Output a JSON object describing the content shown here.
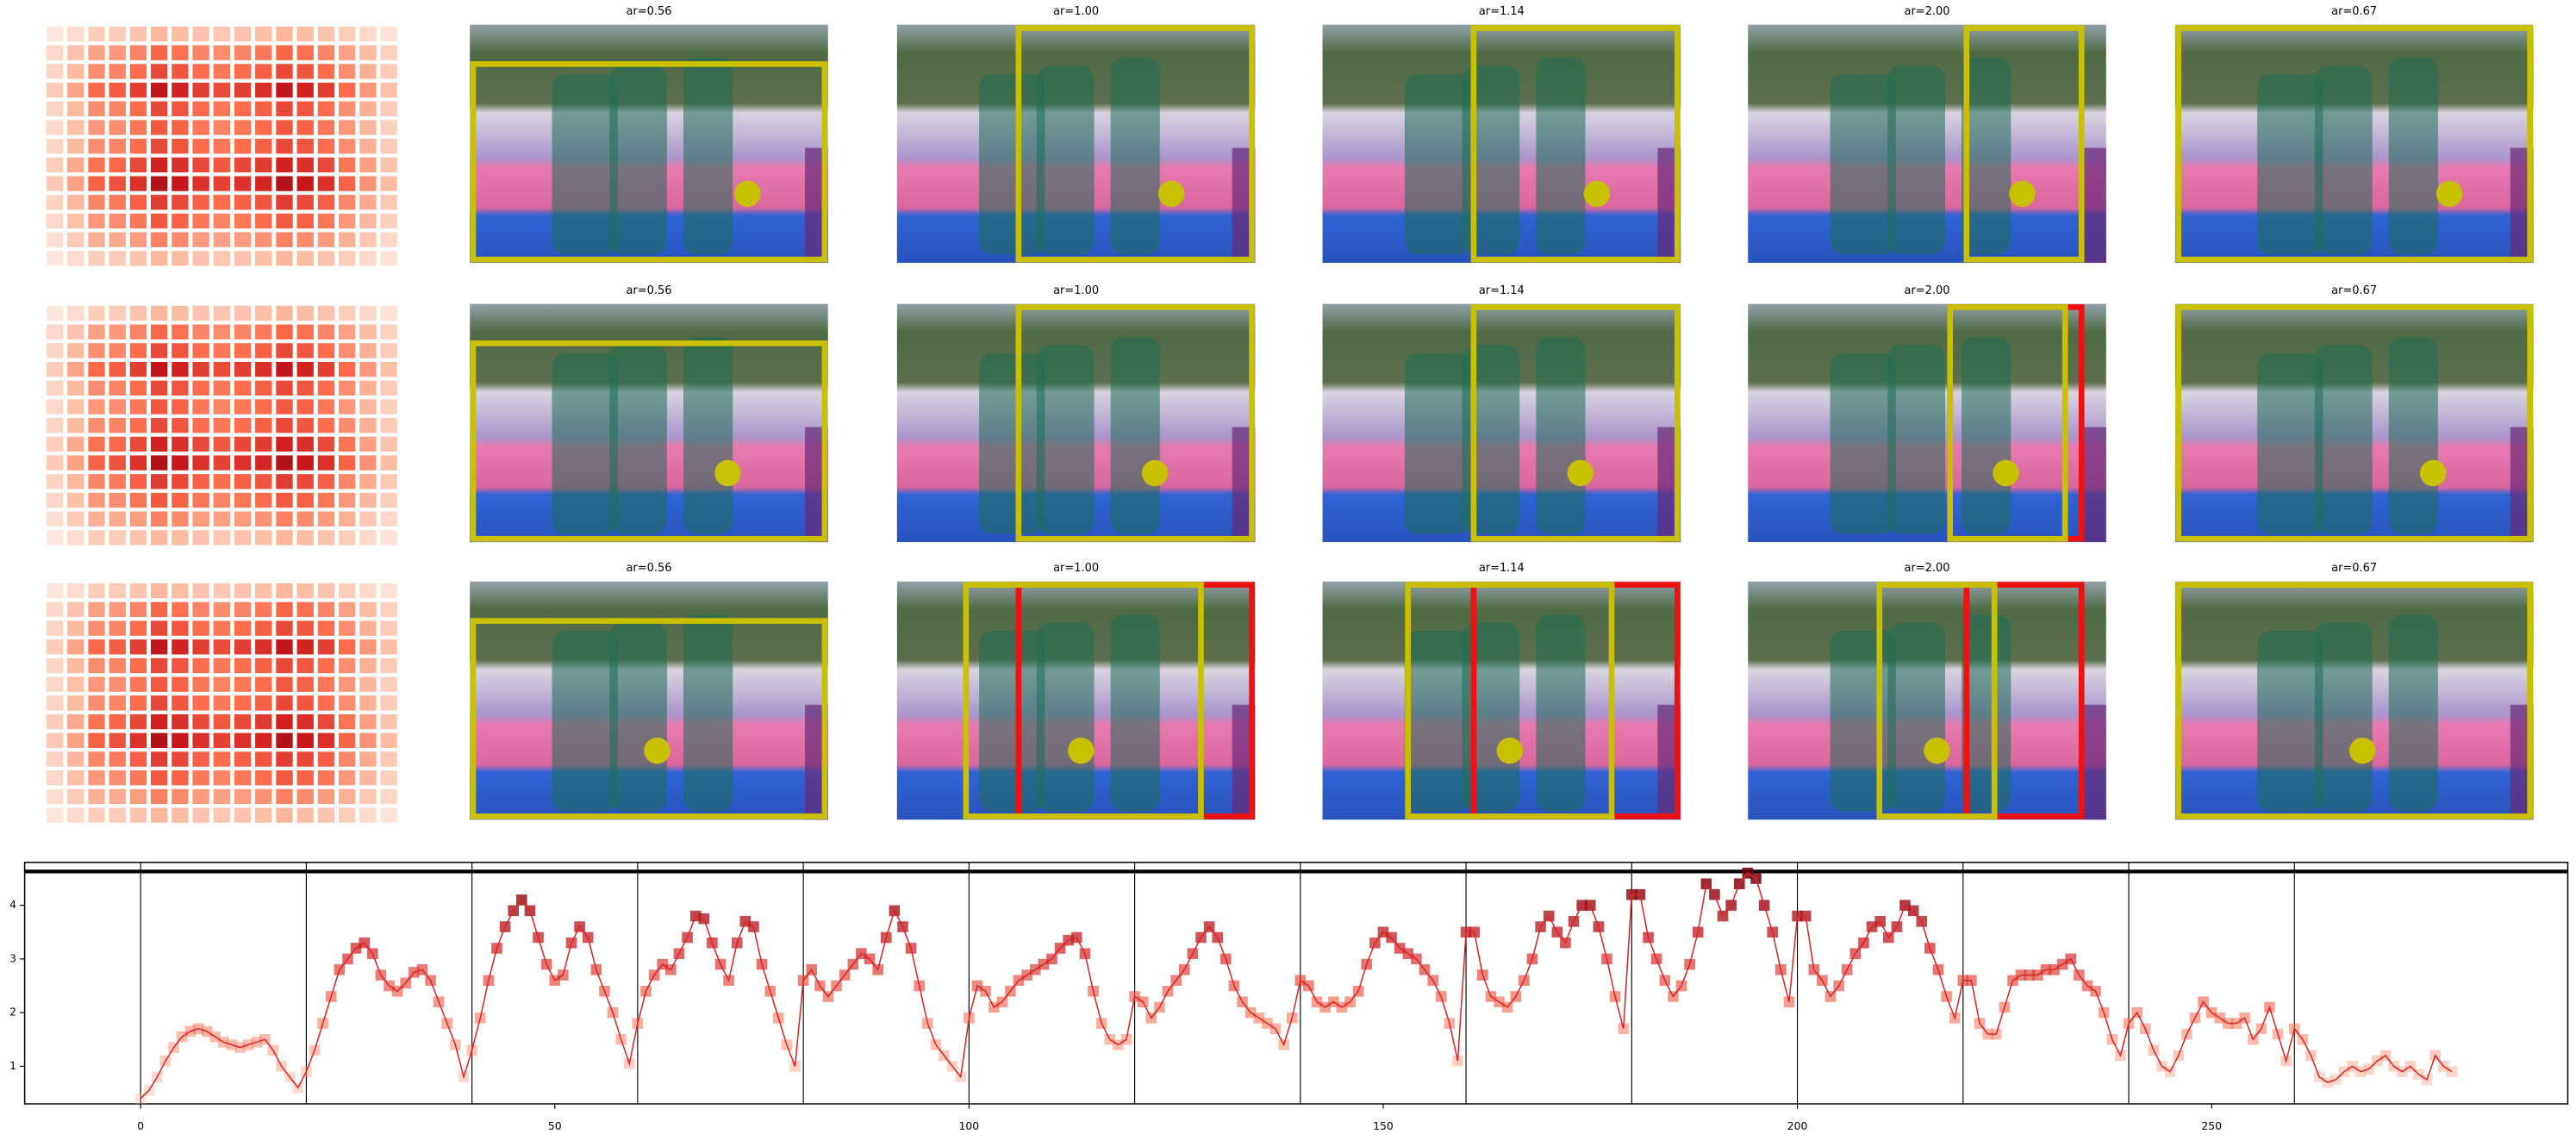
{
  "rows": [
    {
      "titles": [
        "ar=0.56",
        "ar=1.00",
        "ar=1.14",
        "ar=2.00",
        "ar=0.67"
      ]
    },
    {
      "titles": [
        "ar=0.56",
        "ar=1.00",
        "ar=1.14",
        "ar=2.00",
        "ar=0.67"
      ]
    },
    {
      "titles": [
        "ar=0.56",
        "ar=1.00",
        "ar=1.14",
        "ar=2.00",
        "ar=0.67"
      ]
    }
  ],
  "heatmap": {
    "values": [
      [
        0.06,
        0.11,
        0.17,
        0.18,
        0.21,
        0.26,
        0.24,
        0.21,
        0.2,
        0.21,
        0.23,
        0.26,
        0.24,
        0.21,
        0.17,
        0.12,
        0.08
      ],
      [
        0.12,
        0.21,
        0.33,
        0.36,
        0.42,
        0.51,
        0.48,
        0.42,
        0.39,
        0.42,
        0.45,
        0.51,
        0.48,
        0.42,
        0.33,
        0.24,
        0.15
      ],
      [
        0.14,
        0.25,
        0.39,
        0.42,
        0.49,
        0.6,
        0.56,
        0.49,
        0.46,
        0.49,
        0.53,
        0.6,
        0.56,
        0.49,
        0.39,
        0.28,
        0.18
      ],
      [
        0.18,
        0.32,
        0.5,
        0.54,
        0.63,
        0.77,
        0.72,
        0.63,
        0.59,
        0.63,
        0.68,
        0.77,
        0.72,
        0.63,
        0.5,
        0.36,
        0.23
      ],
      [
        0.14,
        0.25,
        0.39,
        0.42,
        0.49,
        0.6,
        0.56,
        0.49,
        0.46,
        0.49,
        0.53,
        0.6,
        0.56,
        0.49,
        0.39,
        0.28,
        0.18
      ],
      [
        0.13,
        0.23,
        0.36,
        0.39,
        0.46,
        0.55,
        0.52,
        0.46,
        0.42,
        0.46,
        0.49,
        0.55,
        0.52,
        0.46,
        0.36,
        0.26,
        0.16
      ],
      [
        0.14,
        0.25,
        0.39,
        0.42,
        0.49,
        0.6,
        0.56,
        0.49,
        0.46,
        0.49,
        0.53,
        0.6,
        0.56,
        0.49,
        0.39,
        0.28,
        0.18
      ],
      [
        0.17,
        0.3,
        0.47,
        0.51,
        0.6,
        0.72,
        0.68,
        0.6,
        0.55,
        0.6,
        0.64,
        0.72,
        0.68,
        0.6,
        0.47,
        0.34,
        0.21
      ],
      [
        0.19,
        0.33,
        0.52,
        0.57,
        0.67,
        0.81,
        0.76,
        0.67,
        0.62,
        0.67,
        0.71,
        0.81,
        0.76,
        0.67,
        0.52,
        0.38,
        0.24
      ],
      [
        0.15,
        0.26,
        0.41,
        0.45,
        0.53,
        0.64,
        0.6,
        0.53,
        0.49,
        0.53,
        0.56,
        0.64,
        0.6,
        0.53,
        0.41,
        0.3,
        0.19
      ],
      [
        0.13,
        0.23,
        0.36,
        0.39,
        0.46,
        0.55,
        0.52,
        0.46,
        0.42,
        0.46,
        0.49,
        0.55,
        0.52,
        0.46,
        0.36,
        0.26,
        0.16
      ],
      [
        0.1,
        0.18,
        0.28,
        0.3,
        0.35,
        0.43,
        0.4,
        0.35,
        0.33,
        0.35,
        0.38,
        0.43,
        0.4,
        0.35,
        0.28,
        0.2,
        0.13
      ],
      [
        0.06,
        0.11,
        0.17,
        0.18,
        0.21,
        0.26,
        0.24,
        0.21,
        0.2,
        0.21,
        0.23,
        0.26,
        0.24,
        0.21,
        0.17,
        0.12,
        0.08
      ]
    ]
  },
  "chart_data": {
    "type": "line",
    "color": "#d62728",
    "x": [
      0,
      1,
      2,
      3,
      4,
      5,
      6,
      7,
      8,
      9,
      10,
      11,
      12,
      13,
      14,
      15,
      16,
      17,
      18,
      19,
      20,
      21,
      22,
      23,
      24,
      25,
      26,
      27,
      28,
      29,
      30,
      31,
      32,
      33,
      34,
      35,
      36,
      37,
      38,
      39,
      40,
      41,
      42,
      43,
      44,
      45,
      46,
      47,
      48,
      49,
      50,
      51,
      52,
      53,
      54,
      55,
      56,
      57,
      58,
      59,
      60,
      61,
      62,
      63,
      64,
      65,
      66,
      67,
      68,
      69,
      70,
      71,
      72,
      73,
      74,
      75,
      76,
      77,
      78,
      79,
      80,
      81,
      82,
      83,
      84,
      85,
      86,
      87,
      88,
      89,
      90,
      91,
      92,
      93,
      94,
      95,
      96,
      97,
      98,
      99,
      100,
      101,
      102,
      103,
      104,
      105,
      106,
      107,
      108,
      109,
      110,
      111,
      112,
      113,
      114,
      115,
      116,
      117,
      118,
      119,
      120,
      121,
      122,
      123,
      124,
      125,
      126,
      127,
      128,
      129,
      130,
      131,
      132,
      133,
      134,
      135,
      136,
      137,
      138,
      139,
      140,
      141,
      142,
      143,
      144,
      145,
      146,
      147,
      148,
      149,
      150,
      151,
      152,
      153,
      154,
      155,
      156,
      157,
      158,
      159,
      160,
      161,
      162,
      163,
      164,
      165,
      166,
      167,
      168,
      169,
      170,
      171,
      172,
      173,
      174,
      175,
      176,
      177,
      178,
      179,
      180,
      181,
      182,
      183,
      184,
      185,
      186,
      187,
      188,
      189,
      190,
      191,
      192,
      193,
      194,
      195,
      196,
      197,
      198,
      199,
      200,
      201,
      202,
      203,
      204,
      205,
      206,
      207,
      208,
      209,
      210,
      211,
      212,
      213,
      214,
      215,
      216,
      217,
      218,
      219,
      220,
      221,
      222,
      223,
      224,
      225,
      226,
      227,
      228,
      229,
      230,
      231,
      232,
      233,
      234,
      235,
      236,
      237,
      238,
      239,
      240,
      241,
      242,
      243,
      244,
      245,
      246,
      247,
      248,
      249,
      250,
      251,
      252,
      253,
      254,
      255,
      256,
      257,
      258,
      259,
      260,
      261,
      262,
      263,
      264,
      265,
      266,
      267,
      268,
      269,
      270,
      271,
      272,
      273,
      274,
      275,
      276,
      277,
      278,
      279
    ],
    "values": [
      0.4,
      0.55,
      0.8,
      1.1,
      1.35,
      1.55,
      1.65,
      1.7,
      1.65,
      1.55,
      1.45,
      1.4,
      1.35,
      1.4,
      1.45,
      1.5,
      1.3,
      1.0,
      0.8,
      0.6,
      0.9,
      1.3,
      1.8,
      2.3,
      2.8,
      3.0,
      3.2,
      3.3,
      3.1,
      2.7,
      2.5,
      2.4,
      2.55,
      2.75,
      2.8,
      2.6,
      2.2,
      1.8,
      1.4,
      0.8,
      1.3,
      1.9,
      2.6,
      3.2,
      3.6,
      3.9,
      4.1,
      3.9,
      3.4,
      2.9,
      2.6,
      2.7,
      3.3,
      3.6,
      3.4,
      2.8,
      2.4,
      2.0,
      1.5,
      1.05,
      1.8,
      2.4,
      2.7,
      2.9,
      2.8,
      3.1,
      3.4,
      3.8,
      3.75,
      3.3,
      2.9,
      2.6,
      3.3,
      3.7,
      3.6,
      2.9,
      2.4,
      1.9,
      1.4,
      1.0,
      2.6,
      2.8,
      2.5,
      2.3,
      2.5,
      2.7,
      2.9,
      3.1,
      3.0,
      2.8,
      3.4,
      3.9,
      3.6,
      3.2,
      2.5,
      1.8,
      1.4,
      1.2,
      1.0,
      0.8,
      1.9,
      2.5,
      2.4,
      2.1,
      2.2,
      2.4,
      2.6,
      2.7,
      2.8,
      2.9,
      3.0,
      3.2,
      3.35,
      3.4,
      3.1,
      2.4,
      1.8,
      1.5,
      1.4,
      1.5,
      2.3,
      2.2,
      1.9,
      2.1,
      2.4,
      2.6,
      2.8,
      3.1,
      3.4,
      3.6,
      3.4,
      3.0,
      2.5,
      2.2,
      2.0,
      1.9,
      1.8,
      1.7,
      1.4,
      1.9,
      2.6,
      2.5,
      2.2,
      2.1,
      2.2,
      2.1,
      2.2,
      2.4,
      2.9,
      3.3,
      3.5,
      3.4,
      3.2,
      3.1,
      3.0,
      2.8,
      2.6,
      2.3,
      1.8,
      1.1,
      3.5,
      3.5,
      2.7,
      2.3,
      2.2,
      2.1,
      2.3,
      2.6,
      3.0,
      3.6,
      3.8,
      3.5,
      3.3,
      3.7,
      4.0,
      4.0,
      3.6,
      3.0,
      2.3,
      1.7,
      4.2,
      4.2,
      3.4,
      3.0,
      2.6,
      2.3,
      2.5,
      2.9,
      3.5,
      4.4,
      4.2,
      3.8,
      4.0,
      4.4,
      4.6,
      4.5,
      4.0,
      3.5,
      2.8,
      2.2,
      3.8,
      3.8,
      2.8,
      2.6,
      2.3,
      2.5,
      2.8,
      3.1,
      3.3,
      3.6,
      3.7,
      3.4,
      3.6,
      4.0,
      3.9,
      3.7,
      3.2,
      2.8,
      2.3,
      1.9,
      2.6,
      2.6,
      1.8,
      1.6,
      1.6,
      2.1,
      2.6,
      2.7,
      2.7,
      2.7,
      2.8,
      2.8,
      2.9,
      3.0,
      2.7,
      2.5,
      2.4,
      2.0,
      1.5,
      1.2,
      1.8,
      2.0,
      1.7,
      1.3,
      1.0,
      0.9,
      1.2,
      1.6,
      1.9,
      2.2,
      2.0,
      1.9,
      1.8,
      1.8,
      1.9,
      1.5,
      1.7,
      2.1,
      1.6,
      1.1,
      1.7,
      1.5,
      1.2,
      0.8,
      0.7,
      0.75,
      0.9,
      1.0,
      0.9,
      0.95,
      1.1,
      1.2,
      1.0,
      0.9,
      1.0,
      0.85,
      0.75,
      1.2,
      1.0,
      0.9
    ],
    "xlim": [
      -14,
      293
    ],
    "ylim": [
      0.3,
      4.8
    ],
    "xticks": [
      0,
      50,
      100,
      150,
      200,
      250
    ],
    "yticks": [
      1,
      2,
      3,
      4
    ],
    "vlines": [
      0,
      20,
      40,
      60,
      80,
      100,
      120,
      140,
      160,
      180,
      200,
      220,
      240,
      260
    ],
    "hline": 4.63
  }
}
